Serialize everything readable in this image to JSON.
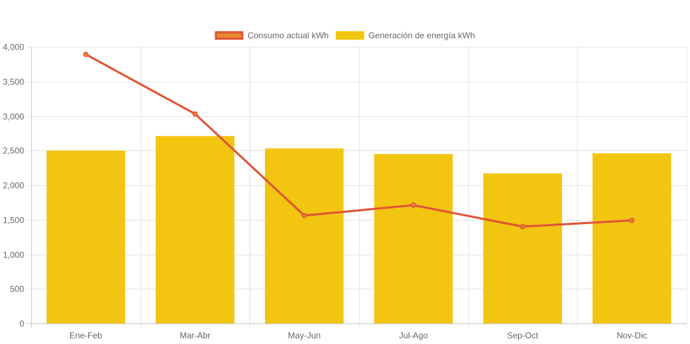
{
  "chart_data": {
    "type": "bar",
    "categories": [
      "Ene-Feb",
      "Mar-Abr",
      "May-Jun",
      "Jul-Ago",
      "Sep-Oct",
      "Nov-Dic"
    ],
    "series": [
      {
        "name": "Consumo actual kWh",
        "type": "line",
        "values": [
          3890,
          3030,
          1560,
          1710,
          1400,
          1490
        ],
        "color": "#e05536",
        "legend_fill": "#e8892e"
      },
      {
        "name": "Generación de energía kWh",
        "type": "bar",
        "values": [
          2500,
          2710,
          2530,
          2450,
          2170,
          2460
        ],
        "color": "#f2c511"
      }
    ],
    "y_ticks": [
      "0",
      "500",
      "1,000",
      "1,500",
      "2,000",
      "2,500",
      "3,000",
      "3,500",
      "4,000"
    ],
    "ylim": [
      0,
      4000
    ],
    "grid": true,
    "legend_position": "top-center",
    "title": "",
    "xlabel": "",
    "ylabel": ""
  }
}
